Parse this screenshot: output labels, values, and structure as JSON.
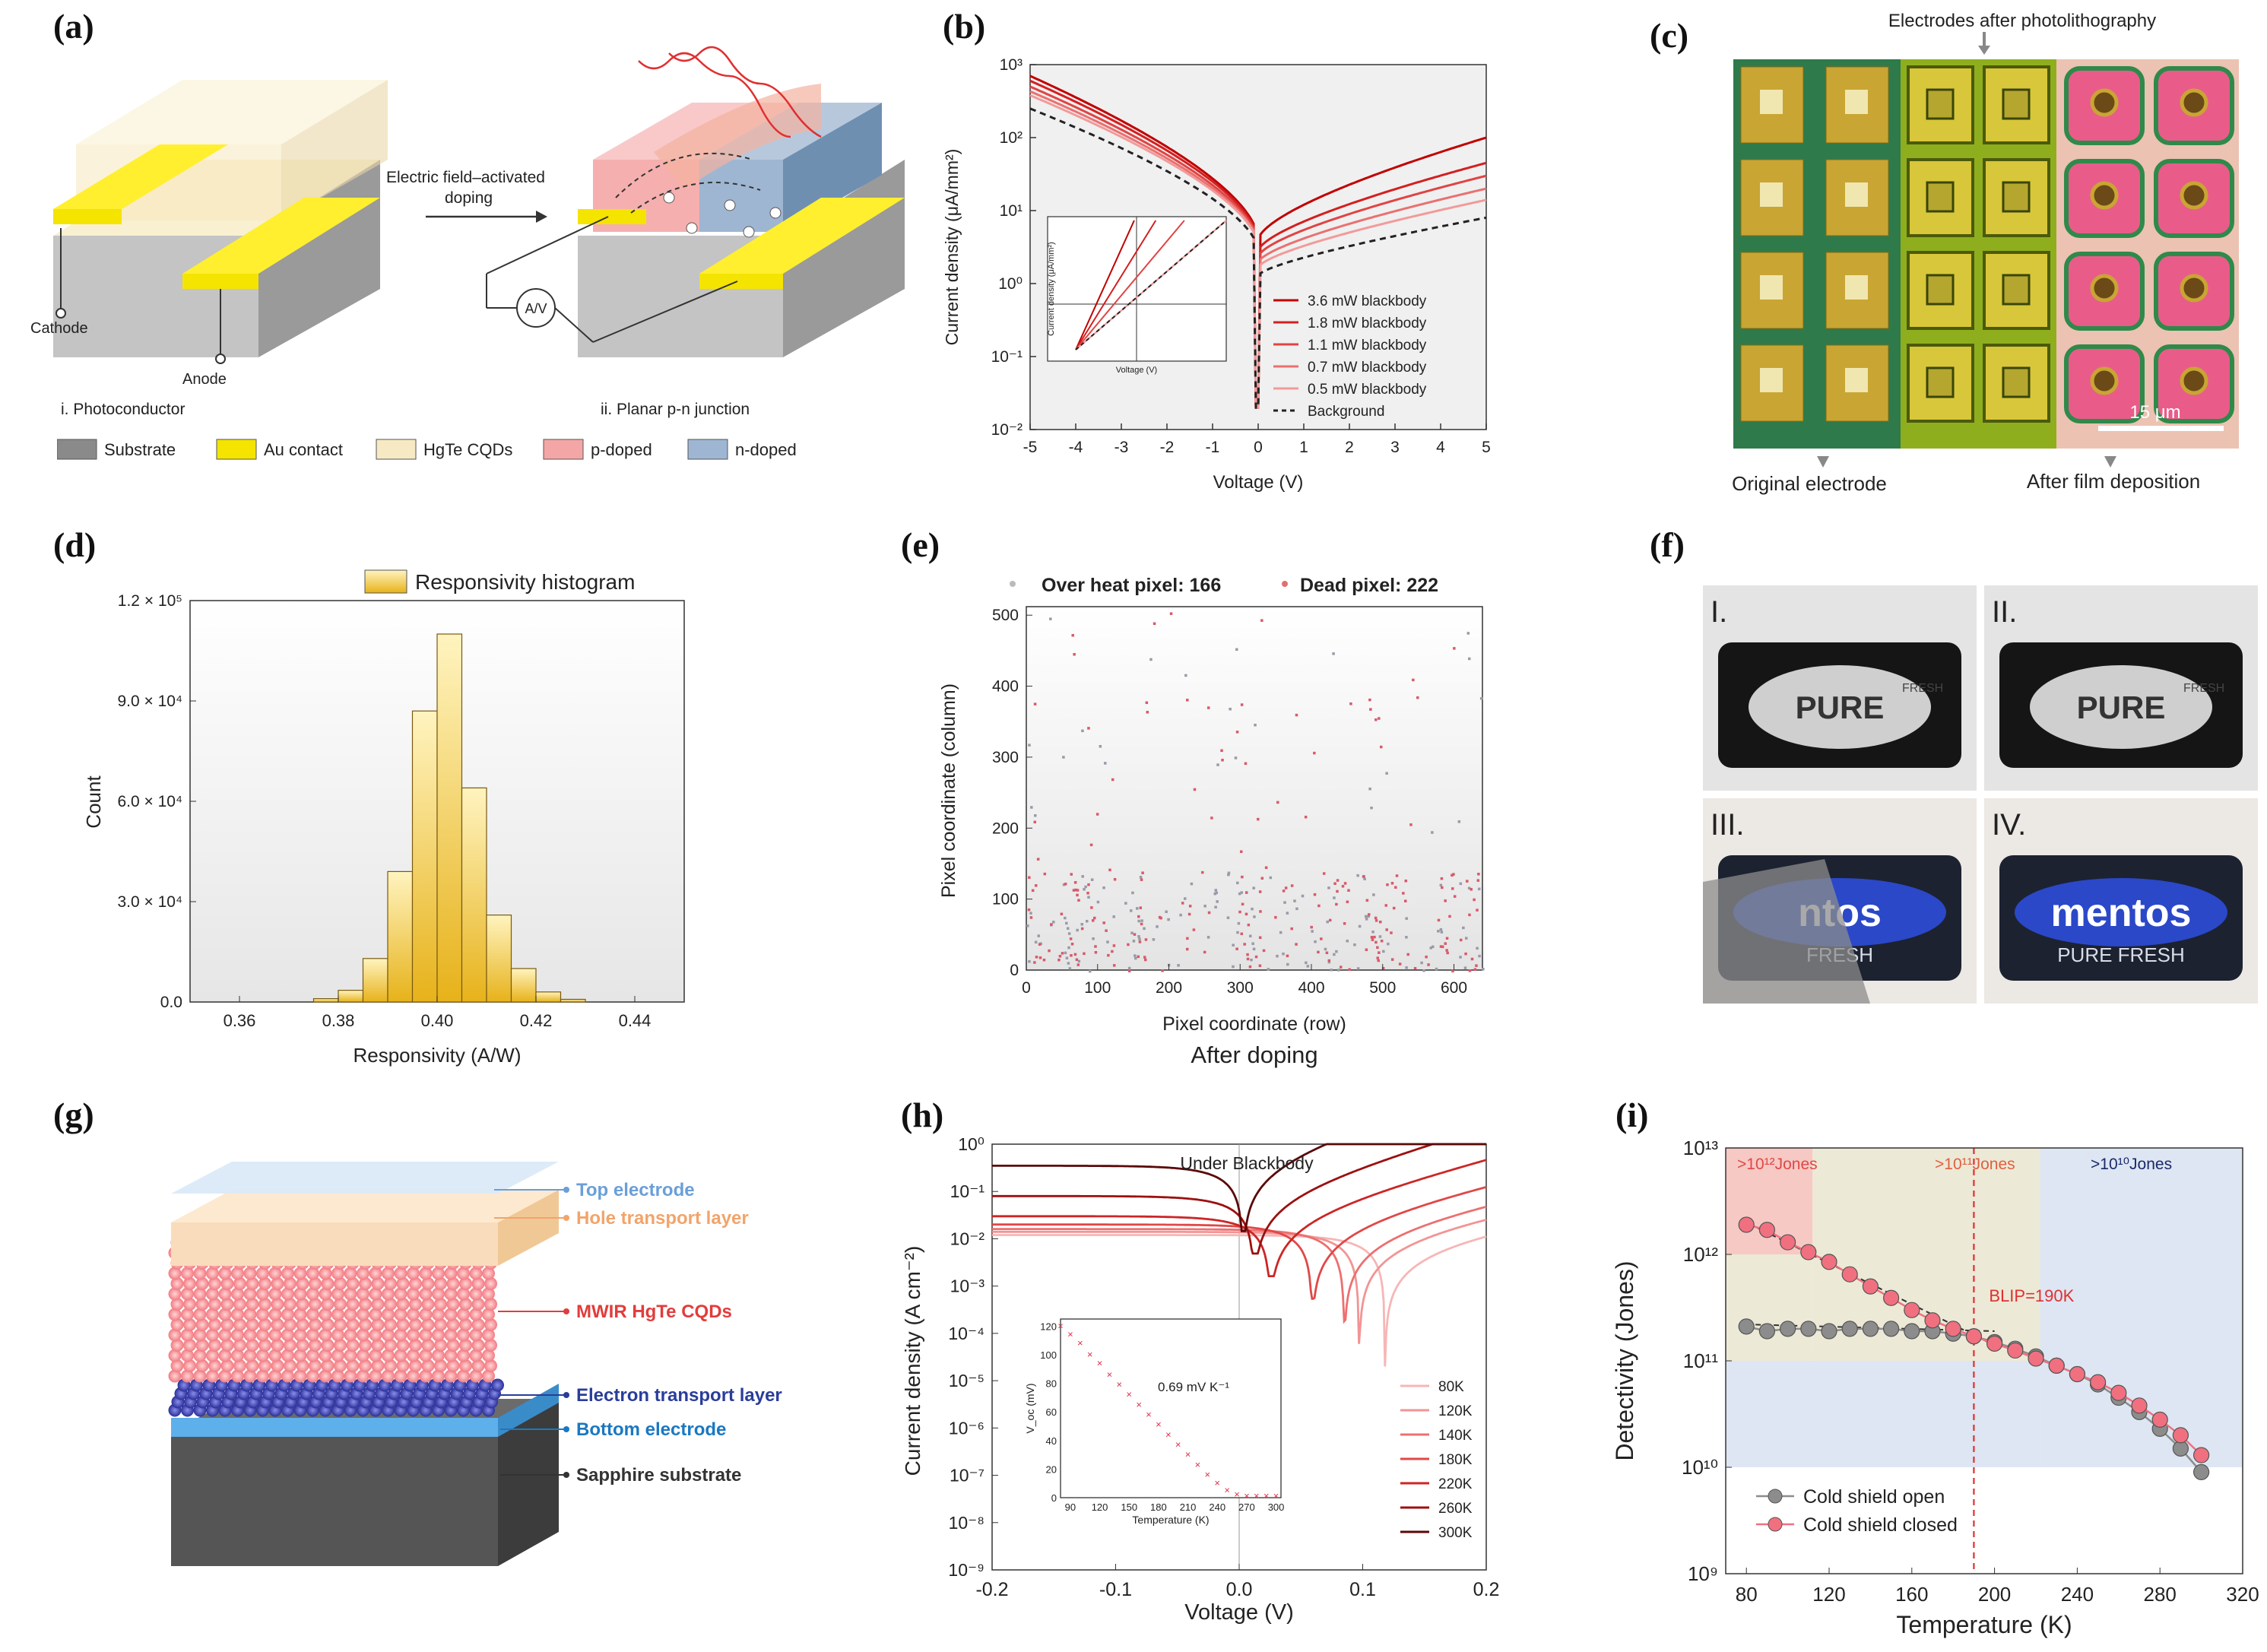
{
  "figure": {
    "panel_labels": [
      "(a)",
      "(b)",
      "(c)",
      "(d)",
      "(e)",
      "(f)",
      "(g)",
      "(h)",
      "(i)"
    ]
  },
  "panel_a": {
    "arrow_label_line1": "Electric field–activated",
    "arrow_label_line2": "doping",
    "cathode": "Cathode",
    "anode": "Anode",
    "meter": "A/V",
    "caption_left": "i. Photoconductor",
    "caption_right": "ii. Planar p-n junction",
    "legend": [
      {
        "label": "Substrate",
        "color": "#8a8a8a"
      },
      {
        "label": "Au contact",
        "color": "#f4e400"
      },
      {
        "label": "HgTe  CQDs",
        "color": "#f7e9c4"
      },
      {
        "label": "p-doped",
        "color": "#f4a6a6"
      },
      {
        "label": "n-doped",
        "color": "#9fb6d2"
      }
    ]
  },
  "panel_b": {
    "chart_data": {
      "type": "line",
      "xlabel": "Voltage (V)",
      "ylabel": "Current density (μA/mm²)",
      "xlim": [
        -5,
        5
      ],
      "ylim": [
        0.01,
        1000
      ],
      "yscale": "log",
      "x_ticks": [
        "-5",
        "-4",
        "-3",
        "-2",
        "-1",
        "0",
        "1",
        "2",
        "3",
        "4",
        "5"
      ],
      "y_ticks": [
        "10⁻²",
        "10⁻¹",
        "10⁰",
        "10¹",
        "10²",
        "10³"
      ],
      "legend": [
        "3.6 mW blackbody",
        "1.8 mW blackbody",
        "1.1 mW blackbody",
        "0.7 mW blackbody",
        "0.5 mW blackbody",
        "Background"
      ],
      "series": [
        {
          "name": "3.6 mW blackbody",
          "color": "#c00000",
          "neg_at_-5": 700,
          "pos_at_5": 100
        },
        {
          "name": "1.8 mW blackbody",
          "color": "#d41f1f",
          "neg_at_-5": 600,
          "pos_at_5": 45
        },
        {
          "name": "1.1 mW blackbody",
          "color": "#e04444",
          "neg_at_-5": 500,
          "pos_at_5": 30
        },
        {
          "name": "0.7 mW blackbody",
          "color": "#ea7070",
          "neg_at_-5": 430,
          "pos_at_5": 20
        },
        {
          "name": "0.5 mW blackbody",
          "color": "#f29a9a",
          "neg_at_-5": 380,
          "pos_at_5": 14
        },
        {
          "name": "Background",
          "color": "#222222",
          "neg_at_-5": 250,
          "pos_at_5": 8
        }
      ],
      "inset": {
        "xlabel": "Voltage (V)",
        "ylabel": "Current density (μA/mm²)"
      }
    }
  },
  "panel_c": {
    "top_label": "Electrodes after photolithography",
    "bottom_left": "Original electrode",
    "bottom_right": "After film deposition",
    "scale": "15 μm"
  },
  "panel_d": {
    "chart_data": {
      "type": "bar",
      "title": "Responsivity histogram",
      "xlabel": "Responsivity (A/W)",
      "ylabel": "Count",
      "xlim": [
        0.35,
        0.45
      ],
      "ylim": [
        0,
        120000
      ],
      "x_ticks": [
        "0.36",
        "0.38",
        "0.40",
        "0.42",
        "0.44"
      ],
      "y_ticks": [
        "0.0",
        "3.0 × 10⁴",
        "6.0 × 10⁴",
        "9.0 × 10⁴",
        "1.2 × 10⁵"
      ],
      "bin_width": 0.005,
      "bin_starts": [
        0.375,
        0.38,
        0.385,
        0.39,
        0.395,
        0.4,
        0.405,
        0.41,
        0.415,
        0.42,
        0.425
      ],
      "values": [
        1000,
        3500,
        13000,
        39000,
        87000,
        110000,
        64000,
        26000,
        10000,
        3000,
        800
      ]
    }
  },
  "panel_e": {
    "header_left": "Over heat pixel: 166",
    "header_right": "Dead pixel: 222",
    "chart_data": {
      "type": "scatter",
      "xlabel": "Pixel coordinate (row)",
      "ylabel": "Pixel coordinate (column)",
      "xlim": [
        0,
        640
      ],
      "ylim": [
        0,
        512
      ],
      "x_ticks": [
        "0",
        "100",
        "200",
        "300",
        "400",
        "500",
        "600"
      ],
      "y_ticks": [
        "0",
        "100",
        "200",
        "300",
        "400",
        "500"
      ],
      "over_heat_pixel_count": 166,
      "dead_pixel_count": 222
    },
    "caption": "After doping"
  },
  "panel_f": {
    "tiles": [
      {
        "label": "I.",
        "brand": "PURE",
        "sub": "FRESH"
      },
      {
        "label": "II.",
        "brand": "PURE",
        "sub": "FRESH"
      },
      {
        "label": "III.",
        "brand": "ntos",
        "sub": "FRESH"
      },
      {
        "label": "IV.",
        "brand": "mentos",
        "sub": "PURE FRESH"
      }
    ]
  },
  "panel_g": {
    "layers": [
      {
        "label": "Top electrode",
        "color": "#6a9fd8"
      },
      {
        "label": "Hole transport layer",
        "color": "#f2a46a"
      },
      {
        "label": "MWIR HgTe CQDs",
        "color": "#e23c3c"
      },
      {
        "label": "Electron transport layer",
        "color": "#2a3d9a"
      },
      {
        "label": "Bottom electrode",
        "color": "#1a78c2"
      },
      {
        "label": "Sapphire substrate",
        "color": "#333333"
      }
    ]
  },
  "panel_h": {
    "chart_data": {
      "type": "line",
      "title": "Under Blackbody",
      "xlabel": "Voltage (V)",
      "ylabel": "Current density (A cm⁻²)",
      "xlim": [
        -0.2,
        0.2
      ],
      "ylim": [
        1e-09,
        1
      ],
      "yscale": "log",
      "x_ticks": [
        "-0.2",
        "-0.1",
        "0.0",
        "0.1",
        "0.2"
      ],
      "y_ticks": [
        "10⁻⁹",
        "10⁻⁸",
        "10⁻⁷",
        "10⁻⁶",
        "10⁻⁵",
        "10⁻⁴",
        "10⁻³",
        "10⁻²",
        "10⁻¹",
        "10⁰"
      ],
      "series": [
        {
          "name": "80K",
          "color": "#f7b6b6",
          "voc": 0.118,
          "jsc": 0.012
        },
        {
          "name": "120K",
          "color": "#f29494",
          "voc": 0.097,
          "jsc": 0.014
        },
        {
          "name": "140K",
          "color": "#ec7070",
          "voc": 0.085,
          "jsc": 0.016
        },
        {
          "name": "180K",
          "color": "#e04848",
          "voc": 0.059,
          "jsc": 0.02
        },
        {
          "name": "220K",
          "color": "#cc2626",
          "voc": 0.025,
          "jsc": 0.03
        },
        {
          "name": "260K",
          "color": "#9c1010",
          "voc": 0.012,
          "jsc": 0.08
        },
        {
          "name": "300K",
          "color": "#5a0808",
          "voc": 0.003,
          "jsc": 0.35
        }
      ],
      "inset": {
        "xlabel": "Temperature (K)",
        "ylabel": "V_oc (mV)",
        "annotation": "0.69 mV K⁻¹",
        "x_ticks": [
          "90",
          "120",
          "150",
          "180",
          "210",
          "240",
          "270",
          "300"
        ],
        "y_ticks": [
          "0",
          "20",
          "40",
          "60",
          "80",
          "100",
          "120"
        ],
        "x": [
          80,
          90,
          100,
          110,
          120,
          130,
          140,
          150,
          160,
          170,
          180,
          190,
          200,
          210,
          220,
          230,
          240,
          250,
          260,
          270,
          280,
          290,
          300
        ],
        "y": [
          120,
          114,
          108,
          100,
          94,
          86,
          79,
          72,
          65,
          58,
          51,
          44,
          37,
          30,
          23,
          16,
          10,
          5,
          2,
          1,
          1,
          1,
          1
        ]
      }
    }
  },
  "panel_i": {
    "chart_data": {
      "type": "scatter",
      "xlabel": "Temperature (K)",
      "ylabel": "Detectivity (Jones)",
      "xlim": [
        70,
        320
      ],
      "ylim": [
        1000000000.0,
        10000000000000.0
      ],
      "yscale": "log",
      "x_ticks": [
        "80",
        "120",
        "160",
        "200",
        "240",
        "280",
        "320"
      ],
      "y_ticks": [
        "10⁹",
        "10¹⁰",
        "10¹¹",
        "10¹²",
        "10¹³"
      ],
      "region_labels": [
        ">10¹²Jones",
        ">10¹¹Jones",
        ">10¹⁰Jones"
      ],
      "blip_label": "BLIP=190K",
      "blip_temperature": 190,
      "legend": [
        "Cold shield open",
        "Cold shield closed"
      ],
      "x": [
        80,
        90,
        100,
        110,
        120,
        130,
        140,
        150,
        160,
        170,
        180,
        190,
        200,
        210,
        220,
        230,
        240,
        250,
        260,
        270,
        280,
        290,
        300
      ],
      "series": [
        {
          "name": "Cold shield open",
          "color": "#8c8c8c",
          "values": [
            210000000000.0,
            190000000000.0,
            200000000000.0,
            200000000000.0,
            190000000000.0,
            200000000000.0,
            200000000000.0,
            200000000000.0,
            190000000000.0,
            190000000000.0,
            180000000000.0,
            170000000000.0,
            150000000000.0,
            130000000000.0,
            110000000000.0,
            90000000000.0,
            75000000000.0,
            60000000000.0,
            45000000000.0,
            33000000000.0,
            23000000000.0,
            15000000000.0,
            9000000000.0
          ]
        },
        {
          "name": "Cold shield closed",
          "color": "#f07080",
          "values": [
            1900000000000.0,
            1700000000000.0,
            1300000000000.0,
            1050000000000.0,
            850000000000.0,
            650000000000.0,
            500000000000.0,
            390000000000.0,
            300000000000.0,
            240000000000.0,
            200000000000.0,
            170000000000.0,
            145000000000.0,
            125000000000.0,
            105000000000.0,
            90000000000.0,
            75000000000.0,
            63000000000.0,
            50000000000.0,
            38000000000.0,
            28000000000.0,
            20000000000.0,
            13000000000.0
          ]
        }
      ]
    }
  }
}
